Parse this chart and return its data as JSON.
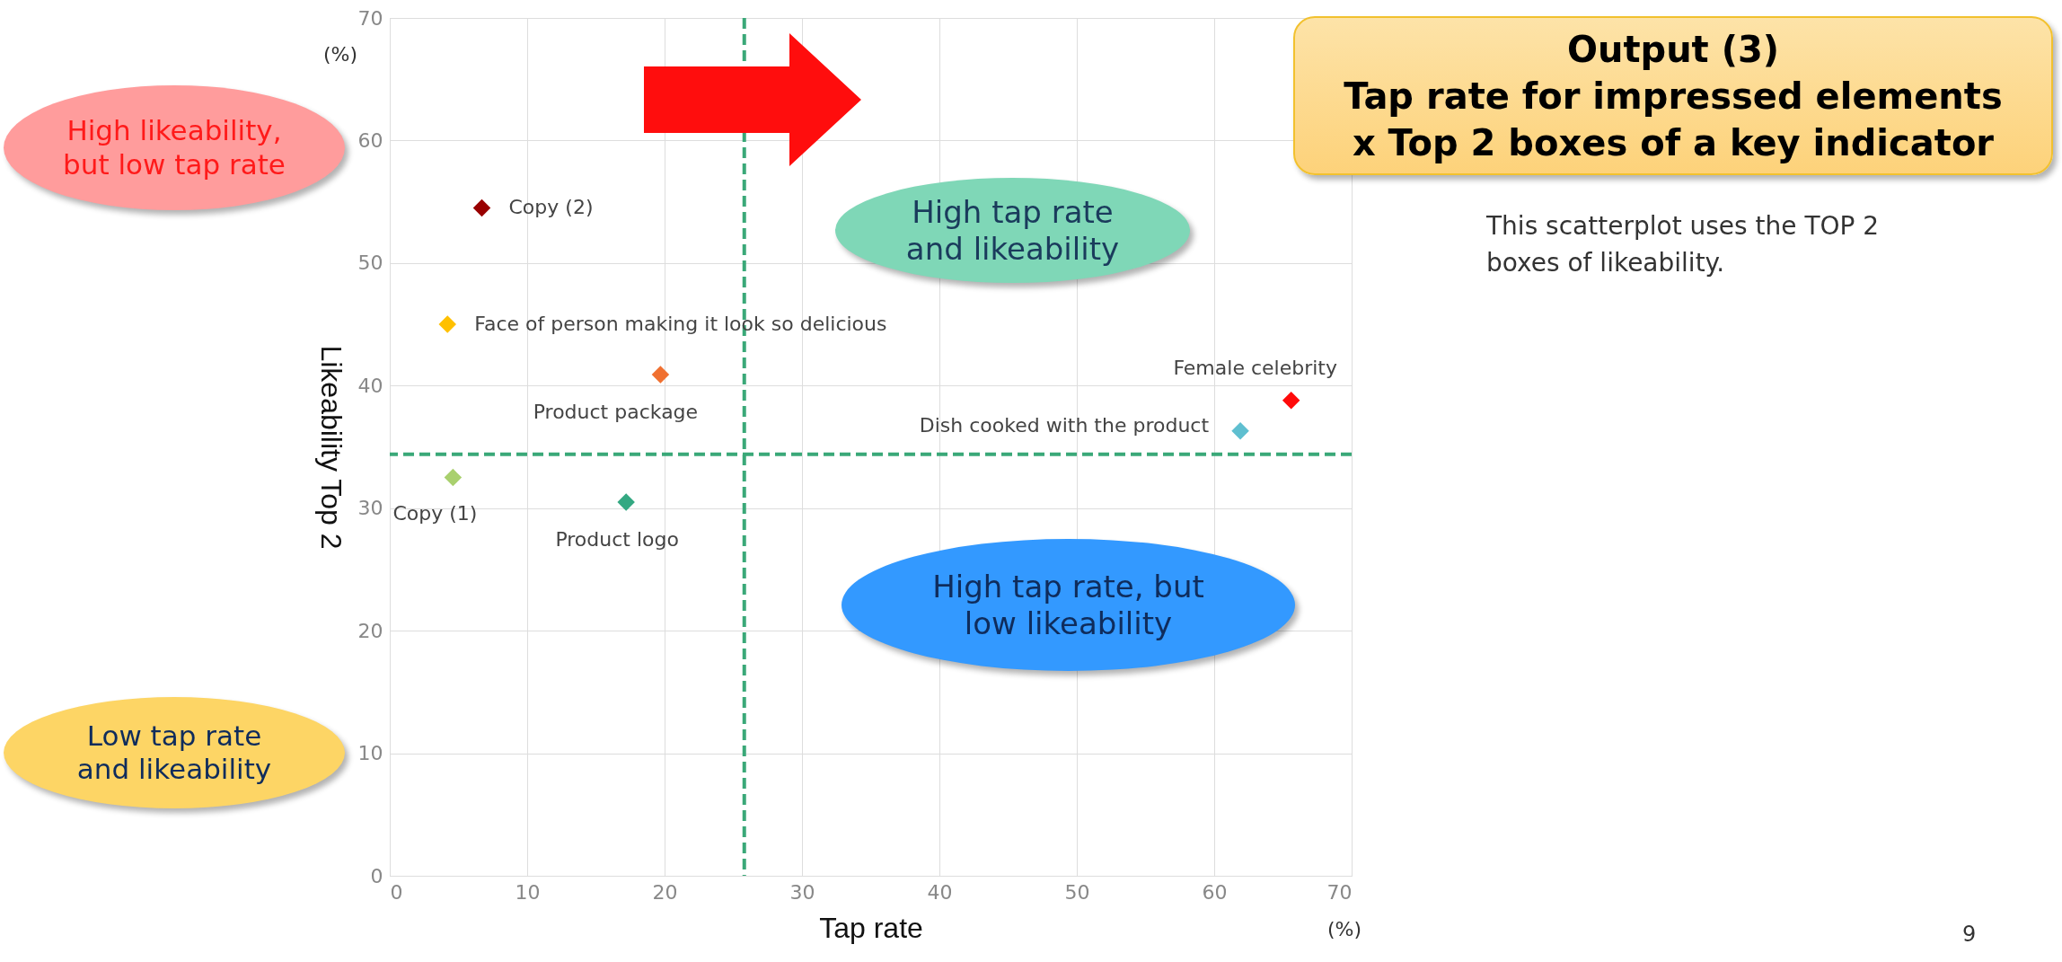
{
  "chart_data": {
    "type": "scatter",
    "title": "Output (3)\nTap rate for impressed elements\nx Top 2 boxes of a key indicator",
    "xlabel": "Tap rate",
    "ylabel": "Likeability Top 2",
    "xlim": [
      0,
      70
    ],
    "ylim": [
      0,
      70
    ],
    "xticks": [
      0,
      10,
      20,
      30,
      40,
      50,
      60,
      70
    ],
    "yticks": [
      0,
      10,
      20,
      30,
      40,
      50,
      60,
      70
    ],
    "grid": true,
    "marker": "diamond",
    "series": [
      {
        "name": "Copy (2)",
        "color": "#990000",
        "x": [
          6.7
        ],
        "values": [
          54.5
        ]
      },
      {
        "name": "Face of person making it look so delicious",
        "color": "#ffc000",
        "x": [
          4.2
        ],
        "values": [
          45.0
        ]
      },
      {
        "name": "Product package",
        "color": "#f07030",
        "x": [
          19.7
        ],
        "values": [
          40.9
        ]
      },
      {
        "name": "Copy (1)",
        "color": "#a9d06e",
        "x": [
          4.6
        ],
        "values": [
          32.5
        ]
      },
      {
        "name": "Product logo",
        "color": "#34a882",
        "x": [
          17.2
        ],
        "values": [
          30.5
        ]
      },
      {
        "name": "Dish cooked with the product",
        "color": "#5fbfd0",
        "x": [
          61.9
        ],
        "values": [
          36.3
        ]
      },
      {
        "name": "Female celebrity",
        "color": "#ff0a0a",
        "x": [
          65.6
        ],
        "values": [
          38.8
        ]
      }
    ],
    "ref_lines": [
      {
        "axis": "x",
        "value": 25.8,
        "color": "#3aa878",
        "line_style": "dashed"
      },
      {
        "axis": "y",
        "value": 34.4,
        "color": "#3aa878",
        "line_style": "dashed"
      }
    ],
    "annotations": [
      "High likeability,\nbut low tap rate",
      "High tap rate\nand likeability",
      "High tap rate, but\nlow likeability",
      "Low tap rate\nand likeability",
      "(%)",
      "(%)",
      "This scatterplot uses the TOP 2\nboxes of likeability.",
      "9"
    ]
  }
}
